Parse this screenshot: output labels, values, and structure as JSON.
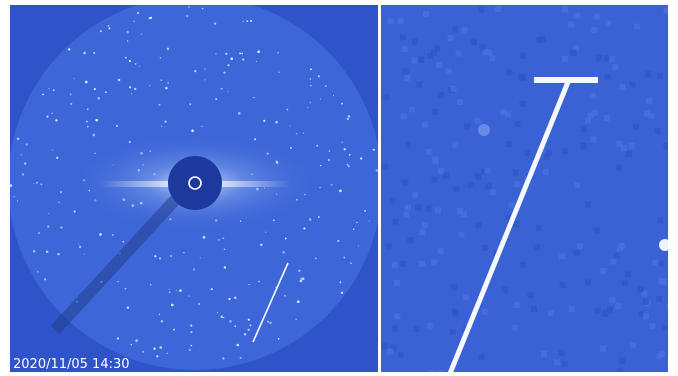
{
  "image": {
    "timestamp": "2020/11/05 14:30"
  }
}
